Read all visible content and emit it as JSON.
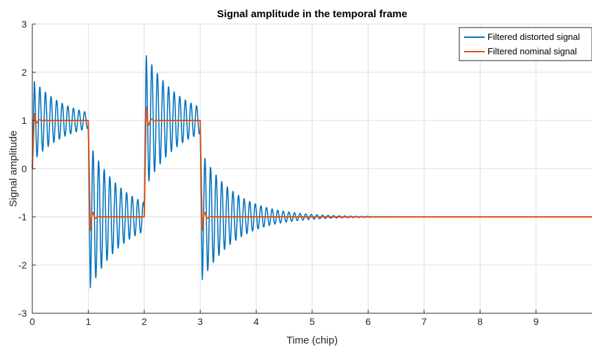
{
  "chart_data": {
    "type": "line",
    "title": "Signal amplitude in the temporal frame",
    "xlabel": "Time (chip)",
    "ylabel": "Signal amplitude",
    "xlim": [
      0,
      10
    ],
    "ylim": [
      -3,
      3
    ],
    "xticks": [
      "0",
      "1",
      "2",
      "3",
      "4",
      "5",
      "6",
      "7",
      "8",
      "9"
    ],
    "yticks": [
      "3",
      "2",
      "1",
      "0",
      "-1",
      "-2",
      "-3"
    ],
    "grid": true,
    "legend_position": "top-right",
    "chip_sequence": [
      1,
      -1,
      1,
      -1,
      -1,
      -1,
      -1,
      -1,
      -1,
      -1
    ],
    "series": [
      {
        "name": "Filtered distorted signal",
        "color": "#0072BD",
        "first_peak": 1.82,
        "transition_peaks": [
          -2.65,
          2.65,
          -2.58
        ],
        "ringing_period_chip": 0.1,
        "ringing_decay_chip": 0.6
      },
      {
        "name": "Filtered nominal signal",
        "color": "#D95319",
        "first_peak": 1.15,
        "transition_peaks": [
          -1.3,
          1.3,
          -1.3
        ],
        "ringing_period_chip": 0.1,
        "ringing_decay_chip": 0.04
      }
    ]
  }
}
